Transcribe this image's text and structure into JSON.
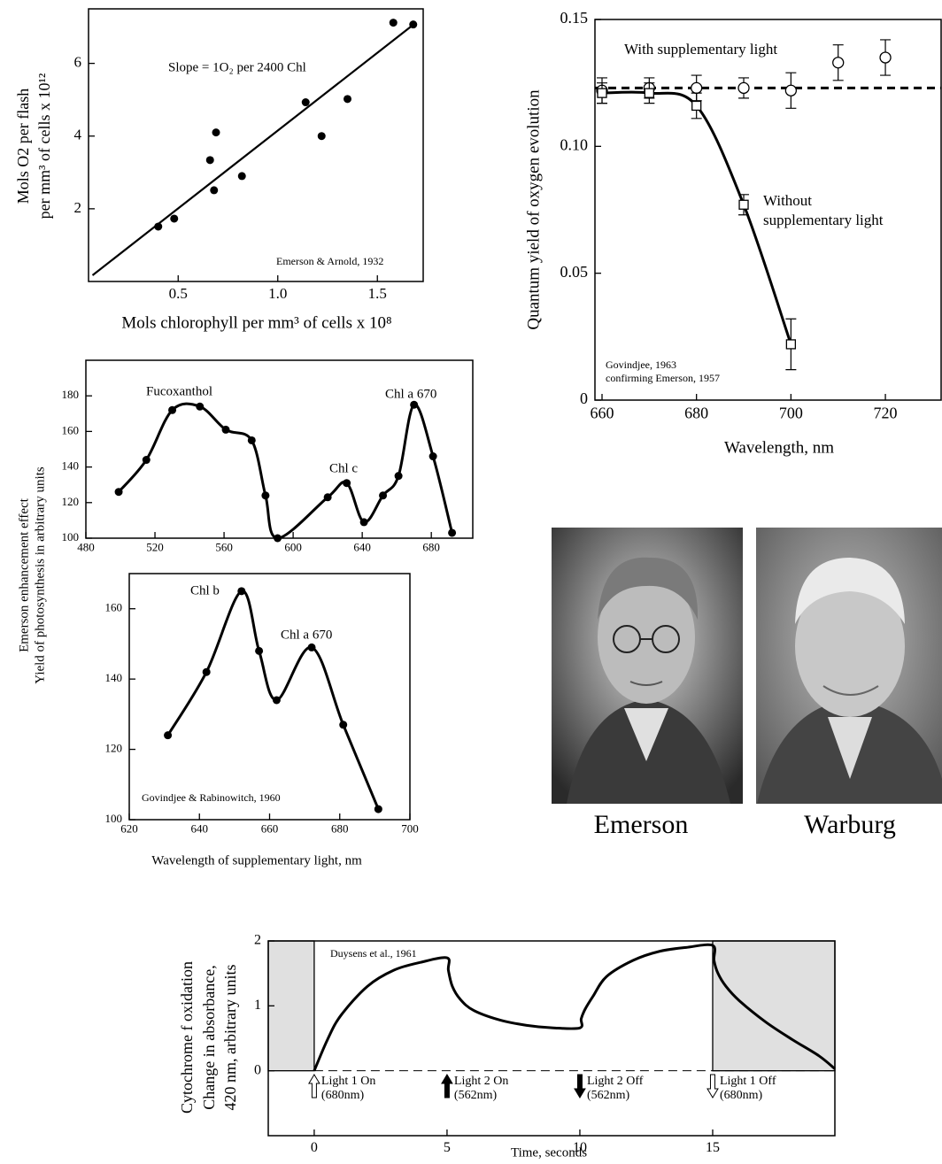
{
  "chart_data": [
    {
      "type": "scatter",
      "color": "#000000",
      "x": [
        0.4,
        0.48,
        0.66,
        0.68,
        0.69,
        0.82,
        1.14,
        1.22,
        1.35,
        1.58,
        1.68
      ],
      "y": [
        1.51,
        1.73,
        3.34,
        2.51,
        4.1,
        2.9,
        4.93,
        4.0,
        5.02,
        7.12,
        7.07
      ],
      "fit": {
        "x": [
          0.07,
          1.67
        ],
        "y": [
          0.17,
          7.02
        ]
      },
      "xlim": [
        0.05,
        1.73
      ],
      "ylim": [
        0,
        7.5
      ],
      "xticks": [
        0.5,
        {
          "value": 1,
          "label": "1.0"
        },
        1.5
      ],
      "yticks": [
        2,
        4,
        6
      ],
      "xlabel": "Mols chlorophyll per mm³ of cells x 10⁸",
      "ylabel": [
        "Mols O2 per flash",
        "per mm³ of cells x 10¹²"
      ],
      "annotations": [
        "Slope = 1O₂ per 2400 Chl",
        "Emerson & Arnold, 1932"
      ]
    },
    {
      "type": "line",
      "xlim": [
        658.5,
        731.8
      ],
      "ylim": [
        0,
        0.15
      ],
      "xticks": [
        660,
        680,
        700,
        720
      ],
      "yticks": [
        0,
        0.05,
        {
          "value": 0.1,
          "label": "0.10"
        },
        0.15
      ],
      "xlabel": "Wavelength, nm",
      "ylabel": [
        "Quantum yield of oxygen evolution"
      ],
      "reference_line": 0.123,
      "series": [
        {
          "name": "With supplementary light",
          "color": "#000000",
          "marker": "circle",
          "connect": false,
          "x": [
            660,
            670,
            680,
            690,
            700,
            710,
            720
          ],
          "values": [
            0.122,
            0.123,
            0.123,
            0.123,
            0.122,
            0.133,
            0.135
          ],
          "errors": [
            0.005,
            0.004,
            0.005,
            0.004,
            0.007,
            0.007,
            0.007
          ]
        },
        {
          "name": "Without supplementary light",
          "color": "#000000",
          "marker": "square",
          "connect": true,
          "x": [
            660,
            670,
            680,
            690,
            700
          ],
          "values": [
            0.121,
            0.121,
            0.116,
            0.077,
            0.022
          ],
          "errors": [
            0.004,
            0.004,
            0.005,
            0.004,
            0.01
          ]
        }
      ],
      "annotations": [
        "Govindjee, 1963",
        "confirming Emerson, 1957"
      ]
    },
    {
      "type": "line",
      "xlim": [
        480,
        704
      ],
      "ylim": [
        100,
        200
      ],
      "xticks": [
        480,
        520,
        560,
        600,
        640,
        680
      ],
      "yticks": [
        100,
        120,
        140,
        160,
        180
      ],
      "ylabel": [
        "Emerson enhancement effect",
        "Yield of photosynthesis in arbitrary units"
      ],
      "series": [
        {
          "color": "#000000",
          "marker": "dot",
          "connect": true,
          "x": [
            499,
            515,
            530,
            546,
            561,
            576,
            584,
            591,
            620,
            631,
            641,
            652,
            661,
            670,
            681,
            692
          ],
          "values": [
            126,
            144,
            172,
            174,
            161,
            155,
            124,
            100,
            123,
            131,
            109,
            124,
            135,
            175,
            146,
            103
          ]
        }
      ],
      "annotations": [
        "Fucoxanthol",
        "Chl c",
        "Chl a 670"
      ]
    },
    {
      "type": "line",
      "xlim": [
        620,
        700
      ],
      "ylim": [
        100,
        170
      ],
      "xticks": [
        620,
        640,
        660,
        680,
        700
      ],
      "yticks": [
        100,
        120,
        140,
        160
      ],
      "xlabel": "Wavelength of supplementary light, nm",
      "series": [
        {
          "color": "#000000",
          "marker": "dot",
          "connect": true,
          "x": [
            631,
            642,
            652,
            657,
            662,
            672,
            681,
            691
          ],
          "values": [
            124,
            142,
            165,
            148,
            134,
            149,
            127,
            103
          ]
        }
      ],
      "annotations": [
        "Chl b",
        "Chl a 670",
        "Govindjee & Rabinowitch, 1960"
      ]
    },
    {
      "type": "line",
      "xlim": [
        -1.73,
        19.6
      ],
      "ylim": [
        -1,
        2
      ],
      "xticks": [
        0,
        5,
        10,
        15
      ],
      "yticks": [
        0,
        1,
        2
      ],
      "xlabel": "Time, seconds",
      "ylabel": [
        "Cytochrome f oxidation",
        "Change in absorbance,",
        "420 nm, arbitrary units"
      ],
      "reference_line": 0,
      "shaded": [
        [
          -1.73,
          0
        ],
        [
          15,
          19.6
        ]
      ],
      "series": [
        {
          "color": "#000000",
          "marker": "none",
          "connect": true,
          "x": [
            0,
            0.5,
            1,
            2,
            3,
            4,
            5,
            5.05,
            5.2,
            5.5,
            6,
            7,
            8,
            9,
            10,
            10.05,
            10.2,
            10.5,
            11,
            12,
            13,
            14,
            15,
            15.05,
            15.2,
            15.5,
            16,
            17,
            18,
            19,
            19.6
          ],
          "values": [
            0,
            0.48,
            0.85,
            1.3,
            1.55,
            1.67,
            1.74,
            1.55,
            1.3,
            1.1,
            0.93,
            0.78,
            0.7,
            0.66,
            0.66,
            0.8,
            0.95,
            1.15,
            1.45,
            1.7,
            1.84,
            1.9,
            1.93,
            1.7,
            1.5,
            1.3,
            1.08,
            0.75,
            0.48,
            0.23,
            0.03
          ]
        }
      ],
      "events": [
        {
          "x": 0,
          "arrow": "up-open",
          "label": "Light 1 On",
          "sublabel": "(680nm)"
        },
        {
          "x": 5,
          "arrow": "up-filled",
          "label": "Light 2 On",
          "sublabel": "(562nm)"
        },
        {
          "x": 10,
          "arrow": "down-filled",
          "label": "Light 2 Off",
          "sublabel": "(562nm)"
        },
        {
          "x": 15,
          "arrow": "down-open",
          "label": "Light 1 Off",
          "sublabel": "(680nm)"
        }
      ],
      "annotations": [
        "Duysens et al., 1961"
      ]
    }
  ],
  "photos": [
    {
      "caption": "Emerson"
    },
    {
      "caption": "Warburg"
    }
  ]
}
